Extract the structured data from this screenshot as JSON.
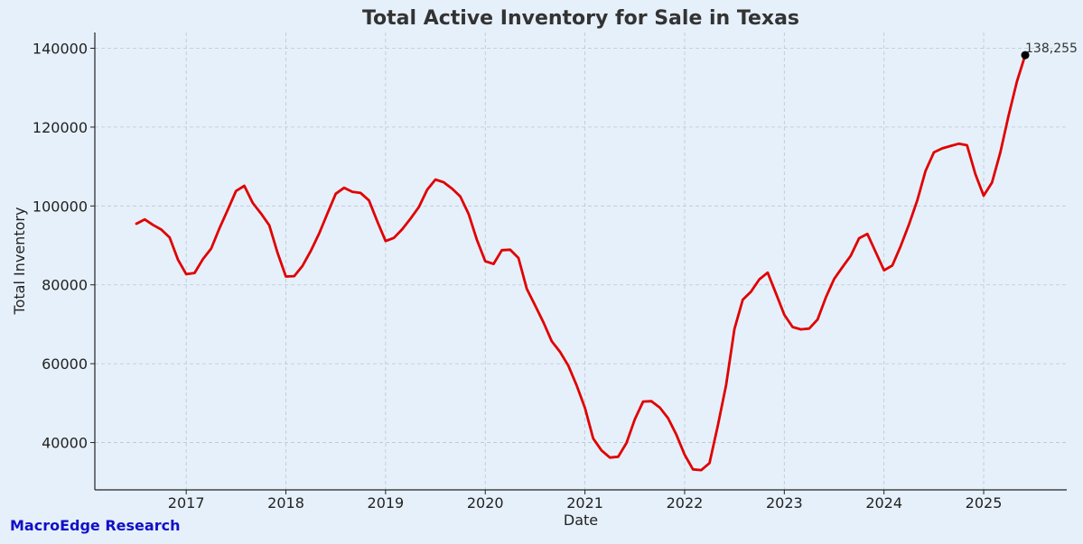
{
  "brand": "MacroEdge Research",
  "chart_data": {
    "type": "line",
    "title": "Total Active Inventory for Sale in Texas",
    "xlabel": "Date",
    "ylabel": "Total Inventory",
    "x_ticks": [
      "2017",
      "2018",
      "2019",
      "2020",
      "2021",
      "2022",
      "2023",
      "2024",
      "2025"
    ],
    "y_ticks": [
      "40000",
      "60000",
      "80000",
      "100000",
      "120000",
      "140000"
    ],
    "ylim": [
      28000,
      144000
    ],
    "xlim": [
      "2016-02",
      "2025-11"
    ],
    "grid": true,
    "line_color": "#e00000",
    "annotation": {
      "date": "2025-06",
      "value": 138255,
      "label": "138,255"
    },
    "series": [
      {
        "x": [
          "2016-07",
          "2016-08",
          "2016-09",
          "2016-10",
          "2016-11",
          "2016-12",
          "2017-01",
          "2017-02",
          "2017-03",
          "2017-04",
          "2017-05",
          "2017-06",
          "2017-07",
          "2017-08",
          "2017-09",
          "2017-10",
          "2017-11",
          "2017-12",
          "2018-01",
          "2018-02",
          "2018-03",
          "2018-04",
          "2018-05",
          "2018-06",
          "2018-07",
          "2018-08",
          "2018-09",
          "2018-10",
          "2018-11",
          "2018-12",
          "2019-01",
          "2019-02",
          "2019-03",
          "2019-04",
          "2019-05",
          "2019-06",
          "2019-07",
          "2019-08",
          "2019-09",
          "2019-10",
          "2019-11",
          "2019-12",
          "2020-01",
          "2020-02",
          "2020-03",
          "2020-04",
          "2020-05",
          "2020-06",
          "2020-07",
          "2020-08",
          "2020-09",
          "2020-10",
          "2020-11",
          "2020-12",
          "2021-01",
          "2021-02",
          "2021-03",
          "2021-04",
          "2021-05",
          "2021-06",
          "2021-07",
          "2021-08",
          "2021-09",
          "2021-10",
          "2021-11",
          "2021-12",
          "2022-01",
          "2022-02",
          "2022-03",
          "2022-04",
          "2022-05",
          "2022-06",
          "2022-07",
          "2022-08",
          "2022-09",
          "2022-10",
          "2022-11",
          "2022-12",
          "2023-01",
          "2023-02",
          "2023-03",
          "2023-04",
          "2023-05",
          "2023-06",
          "2023-07",
          "2023-08",
          "2023-09",
          "2023-10",
          "2023-11",
          "2023-12",
          "2024-01",
          "2024-02",
          "2024-03",
          "2024-04",
          "2024-05",
          "2024-06",
          "2024-07",
          "2024-08",
          "2024-09",
          "2024-10",
          "2024-11",
          "2024-12",
          "2025-01",
          "2025-02",
          "2025-03",
          "2025-04",
          "2025-05",
          "2025-06"
        ],
        "values": [
          95500,
          96600,
          95200,
          94000,
          92000,
          86400,
          82700,
          83000,
          86500,
          89200,
          94300,
          99000,
          103800,
          105100,
          100800,
          98100,
          95100,
          88100,
          82100,
          82200,
          84800,
          88600,
          93000,
          98100,
          103100,
          104600,
          103600,
          103300,
          101400,
          96100,
          91100,
          91900,
          94100,
          96800,
          99700,
          104100,
          106700,
          106000,
          104400,
          102400,
          98000,
          91400,
          86000,
          85300,
          88800,
          88900,
          86800,
          79000,
          74800,
          70500,
          65700,
          63000,
          59500,
          54500,
          48800,
          41000,
          38000,
          36200,
          36400,
          39900,
          45900,
          50400,
          50500,
          48900,
          46200,
          42000,
          36900,
          33200,
          33000,
          34800,
          44300,
          54600,
          68800,
          76200,
          78300,
          81400,
          83100,
          77800,
          72400,
          69300,
          68700,
          68900,
          71200,
          76800,
          81500,
          84500,
          87400,
          91800,
          92900,
          88300,
          83700,
          84900,
          89800,
          95300,
          101400,
          108900,
          113600,
          114600,
          115200,
          115800,
          115400,
          108100,
          102600,
          105900,
          113500,
          122900,
          131500,
          138255
        ]
      }
    ]
  }
}
